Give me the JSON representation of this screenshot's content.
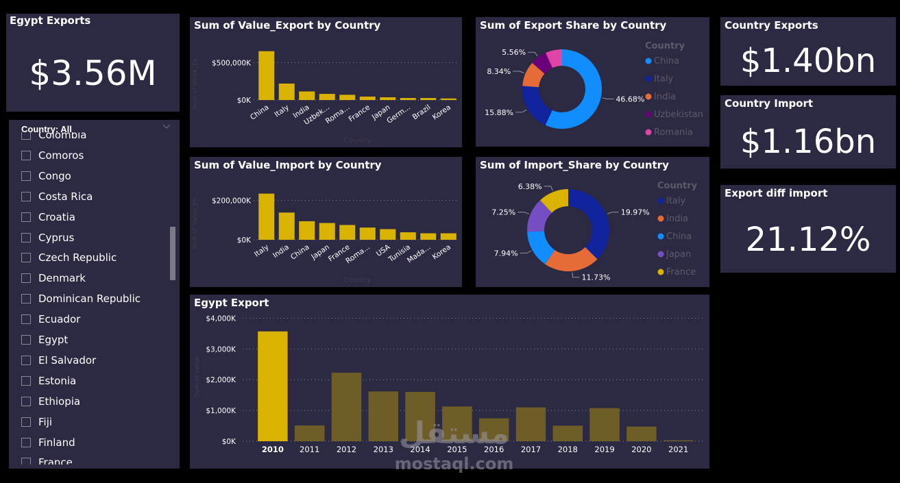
{
  "colors": {
    "background": "#000000",
    "card": "#2c2942",
    "bar": "#d9b300",
    "bar_dim": "#6f5d27",
    "text": "#ffffff",
    "muted": "#5d5a6a",
    "gridline": "#8c8a99"
  },
  "kpis": {
    "egypt_exports": {
      "title": "Egypt Exports",
      "value": "$3.56M"
    },
    "country_exports": {
      "title": "Country Exports",
      "value": "$1.40bn"
    },
    "country_import": {
      "title": "Country Import",
      "value": "$1.16bn"
    },
    "export_diff_import": {
      "title": "Export diff import",
      "value": "21.12%"
    }
  },
  "slicer": {
    "header": "Country: All",
    "chevron_icon": "chevron-down-icon",
    "items": [
      {
        "label": "Colombia",
        "checked": false
      },
      {
        "label": "Comoros",
        "checked": false
      },
      {
        "label": "Congo",
        "checked": false
      },
      {
        "label": "Costa Rica",
        "checked": false
      },
      {
        "label": "Croatia",
        "checked": false
      },
      {
        "label": "Cyprus",
        "checked": false
      },
      {
        "label": "Czech Republic",
        "checked": false
      },
      {
        "label": "Denmark",
        "checked": false
      },
      {
        "label": "Dominican Republic",
        "checked": false
      },
      {
        "label": "Ecuador",
        "checked": false
      },
      {
        "label": "Egypt",
        "checked": false
      },
      {
        "label": "El Salvador",
        "checked": false
      },
      {
        "label": "Estonia",
        "checked": false
      },
      {
        "label": "Ethiopia",
        "checked": false
      },
      {
        "label": "Fiji",
        "checked": false
      },
      {
        "label": "Finland",
        "checked": false
      },
      {
        "label": "France",
        "checked": false
      }
    ]
  },
  "watermark": {
    "arabic": "مستقل",
    "text": "mostaql.com"
  },
  "chart_data": [
    {
      "id": "export_by_country",
      "type": "bar",
      "title": "Sum of Value_Export by Country",
      "xlabel": "Country",
      "ylabel": "Sum of Value_Ex...",
      "categories": [
        "China",
        "Italy",
        "India",
        "Uzbek...",
        "Roma...",
        "France",
        "Japan",
        "Germ...",
        "Brazil",
        "Korea"
      ],
      "values": [
        653000,
        220000,
        115000,
        82000,
        70000,
        46000,
        37000,
        27000,
        27000,
        21000
      ],
      "yticks": [
        0,
        500000
      ],
      "ytick_labels": [
        "$0K",
        "$500,000K"
      ],
      "ylim": [
        0,
        700000
      ],
      "grid": true
    },
    {
      "id": "import_by_country",
      "type": "bar",
      "title": "Sum of Value_Import by Country",
      "xlabel": "Country",
      "ylabel": "Sum of Value_Im...",
      "categories": [
        "Italy",
        "India",
        "China",
        "Japan",
        "France",
        "Roma...",
        "USA",
        "Tunisia",
        "Mada...",
        "Korea"
      ],
      "values": [
        234000,
        138000,
        94000,
        85000,
        75000,
        62000,
        54000,
        38000,
        33000,
        33000
      ],
      "yticks": [
        0,
        200000
      ],
      "ytick_labels": [
        "$0K",
        "$200,000K"
      ],
      "ylim": [
        0,
        250000
      ],
      "grid": true
    },
    {
      "id": "export_share",
      "type": "pie",
      "title": "Sum of Export Share by Country",
      "legend_title": "Country",
      "legend_position": "right",
      "labels": [
        "China",
        "Italy",
        "India",
        "Uzbekistan",
        "Romania"
      ],
      "values": [
        46.68,
        15.88,
        8.34,
        5.56,
        5.56
      ],
      "data_labels": [
        "46.68%",
        "15.88%",
        "8.34%",
        "5.56%",
        ""
      ],
      "colors": [
        "#118dff",
        "#12239e",
        "#e66c37",
        "#6b007b",
        "#e044a7"
      ]
    },
    {
      "id": "import_share",
      "type": "pie",
      "title": "Sum of Import_Share by Country",
      "legend_title": "Country",
      "legend_position": "right",
      "labels": [
        "Italy",
        "India",
        "China",
        "Japan",
        "France"
      ],
      "values": [
        19.97,
        11.73,
        7.94,
        7.25,
        6.38
      ],
      "data_labels": [
        "19.97%",
        "11.73%",
        "7.94%",
        "7.25%",
        "6.38%"
      ],
      "colors": [
        "#12239e",
        "#e66c37",
        "#118dff",
        "#744ec2",
        "#d9b300"
      ]
    },
    {
      "id": "egypt_export",
      "type": "bar",
      "title": "Egypt Export",
      "xlabel": "Year",
      "ylabel": "Sum of value",
      "categories": [
        "2010",
        "2011",
        "2012",
        "2013",
        "2014",
        "2015",
        "2016",
        "2017",
        "2018",
        "2019",
        "2020",
        "2021"
      ],
      "values": [
        3570,
        512,
        2226,
        1618,
        1603,
        1129,
        743,
        1100,
        505,
        1077,
        476,
        31
      ],
      "highlighted": "2010",
      "yticks": [
        0,
        1000,
        2000,
        3000,
        4000
      ],
      "ytick_labels": [
        "$0K",
        "$1,000K",
        "$2,000K",
        "$3,000K",
        "$4,000K"
      ],
      "ylim": [
        0,
        4000
      ],
      "grid": true
    }
  ]
}
